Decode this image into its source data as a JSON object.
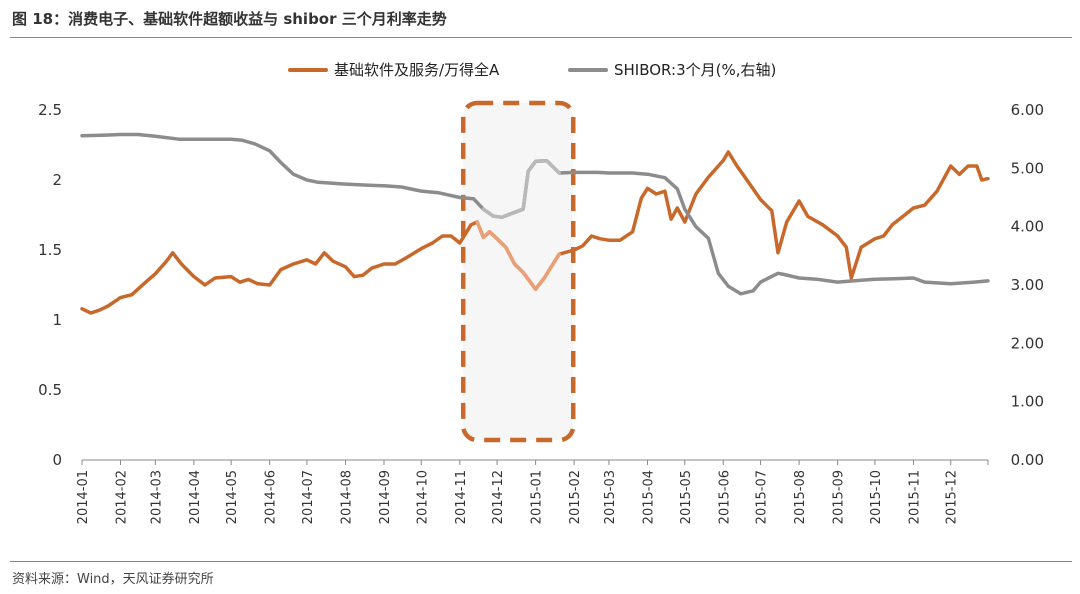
{
  "header": {
    "title": "图 18：消费电子、基础软件超额收益与 shibor 三个月利率走势"
  },
  "footer": {
    "source": "资料来源：Wind，天风证券研究所"
  },
  "colors": {
    "software": "#c8682a",
    "shibor": "#8c8c8c",
    "shibor_highlight": "#b9b9b9",
    "rule": "#c8773b",
    "highlight_box": "#c8682a"
  },
  "chart_data": {
    "type": "line",
    "title": "",
    "x_categories": [
      "2014-01",
      "2014-02",
      "2014-03",
      "2014-04",
      "2014-05",
      "2014-06",
      "2014-07",
      "2014-08",
      "2014-09",
      "2014-10",
      "2014-11",
      "2014-12",
      "2015-01",
      "2015-02",
      "2015-03",
      "2015-04",
      "2015-05",
      "2015-06",
      "2015-07",
      "2015-08",
      "2015-09",
      "2015-10",
      "2015-11",
      "2015-12"
    ],
    "y_left": {
      "ylim": [
        0,
        2.5
      ],
      "ticks": [
        "0",
        "0.5",
        "1",
        "1.5",
        "2",
        "2.5"
      ]
    },
    "y_right": {
      "ylim": [
        0,
        6
      ],
      "ticks": [
        "0.00",
        "1.00",
        "2.00",
        "3.00",
        "4.00",
        "5.00",
        "6.00"
      ]
    },
    "legend_position": "top-center",
    "grid": false,
    "highlight_range": [
      "2014-11-15",
      "2015-01-20"
    ],
    "series": [
      {
        "name": "基础软件及服务/万得全A",
        "axis": "left",
        "points": [
          [
            "2014-01-01",
            1.08
          ],
          [
            "2014-01-08",
            1.05
          ],
          [
            "2014-01-15",
            1.07
          ],
          [
            "2014-01-22",
            1.1
          ],
          [
            "2014-02-01",
            1.16
          ],
          [
            "2014-02-10",
            1.18
          ],
          [
            "2014-02-20",
            1.26
          ],
          [
            "2014-03-01",
            1.33
          ],
          [
            "2014-03-10",
            1.42
          ],
          [
            "2014-03-15",
            1.48
          ],
          [
            "2014-03-22",
            1.4
          ],
          [
            "2014-04-01",
            1.31
          ],
          [
            "2014-04-10",
            1.25
          ],
          [
            "2014-04-18",
            1.3
          ],
          [
            "2014-05-01",
            1.31
          ],
          [
            "2014-05-08",
            1.27
          ],
          [
            "2014-05-15",
            1.29
          ],
          [
            "2014-05-22",
            1.26
          ],
          [
            "2014-06-01",
            1.25
          ],
          [
            "2014-06-10",
            1.36
          ],
          [
            "2014-06-20",
            1.4
          ],
          [
            "2014-07-01",
            1.43
          ],
          [
            "2014-07-08",
            1.4
          ],
          [
            "2014-07-15",
            1.48
          ],
          [
            "2014-07-22",
            1.42
          ],
          [
            "2014-08-01",
            1.38
          ],
          [
            "2014-08-08",
            1.31
          ],
          [
            "2014-08-15",
            1.32
          ],
          [
            "2014-08-22",
            1.37
          ],
          [
            "2014-09-01",
            1.4
          ],
          [
            "2014-09-10",
            1.4
          ],
          [
            "2014-09-20",
            1.45
          ],
          [
            "2014-10-01",
            1.51
          ],
          [
            "2014-10-10",
            1.55
          ],
          [
            "2014-10-18",
            1.6
          ],
          [
            "2014-10-25",
            1.6
          ],
          [
            "2014-11-01",
            1.55
          ],
          [
            "2014-11-10",
            1.68
          ],
          [
            "2014-11-15",
            1.7
          ],
          [
            "2014-11-20",
            1.59
          ],
          [
            "2014-11-25",
            1.63
          ],
          [
            "2014-12-01",
            1.58
          ],
          [
            "2014-12-08",
            1.52
          ],
          [
            "2014-12-15",
            1.4
          ],
          [
            "2014-12-22",
            1.34
          ],
          [
            "2015-01-01",
            1.22
          ],
          [
            "2015-01-08",
            1.3
          ],
          [
            "2015-01-15",
            1.4
          ],
          [
            "2015-01-20",
            1.47
          ],
          [
            "2015-02-01",
            1.5
          ],
          [
            "2015-02-08",
            1.53
          ],
          [
            "2015-02-15",
            1.6
          ],
          [
            "2015-02-22",
            1.58
          ],
          [
            "2015-03-01",
            1.57
          ],
          [
            "2015-03-10",
            1.57
          ],
          [
            "2015-03-20",
            1.63
          ],
          [
            "2015-03-27",
            1.87
          ],
          [
            "2015-04-01",
            1.94
          ],
          [
            "2015-04-08",
            1.9
          ],
          [
            "2015-04-15",
            1.92
          ],
          [
            "2015-04-20",
            1.72
          ],
          [
            "2015-04-25",
            1.8
          ],
          [
            "2015-05-01",
            1.7
          ],
          [
            "2015-05-10",
            1.9
          ],
          [
            "2015-05-20",
            2.02
          ],
          [
            "2015-06-01",
            2.14
          ],
          [
            "2015-06-05",
            2.2
          ],
          [
            "2015-06-12",
            2.1
          ],
          [
            "2015-06-20",
            2.0
          ],
          [
            "2015-07-01",
            1.86
          ],
          [
            "2015-07-10",
            1.78
          ],
          [
            "2015-07-15",
            1.48
          ],
          [
            "2015-07-22",
            1.7
          ],
          [
            "2015-08-01",
            1.85
          ],
          [
            "2015-08-08",
            1.74
          ],
          [
            "2015-08-20",
            1.68
          ],
          [
            "2015-09-01",
            1.6
          ],
          [
            "2015-09-08",
            1.52
          ],
          [
            "2015-09-12",
            1.3
          ],
          [
            "2015-09-20",
            1.52
          ],
          [
            "2015-10-01",
            1.58
          ],
          [
            "2015-10-08",
            1.6
          ],
          [
            "2015-10-15",
            1.68
          ],
          [
            "2015-10-25",
            1.75
          ],
          [
            "2015-11-01",
            1.8
          ],
          [
            "2015-11-10",
            1.82
          ],
          [
            "2015-11-20",
            1.92
          ],
          [
            "2015-12-01",
            2.1
          ],
          [
            "2015-12-08",
            2.04
          ],
          [
            "2015-12-15",
            2.1
          ],
          [
            "2015-12-22",
            2.1
          ],
          [
            "2015-12-26",
            2.0
          ],
          [
            "2015-12-31",
            2.01
          ]
        ]
      },
      {
        "name": "SHIBOR:3个月(%,右轴)",
        "axis": "right",
        "points": [
          [
            "2014-01-01",
            5.56
          ],
          [
            "2014-01-20",
            5.57
          ],
          [
            "2014-02-01",
            5.58
          ],
          [
            "2014-02-15",
            5.58
          ],
          [
            "2014-03-01",
            5.55
          ],
          [
            "2014-03-20",
            5.5
          ],
          [
            "2014-04-01",
            5.5
          ],
          [
            "2014-04-20",
            5.5
          ],
          [
            "2014-05-01",
            5.5
          ],
          [
            "2014-05-10",
            5.48
          ],
          [
            "2014-05-20",
            5.42
          ],
          [
            "2014-06-01",
            5.3
          ],
          [
            "2014-06-10",
            5.1
          ],
          [
            "2014-06-20",
            4.9
          ],
          [
            "2014-07-01",
            4.8
          ],
          [
            "2014-07-10",
            4.76
          ],
          [
            "2014-08-01",
            4.73
          ],
          [
            "2014-08-20",
            4.71
          ],
          [
            "2014-09-01",
            4.7
          ],
          [
            "2014-09-15",
            4.68
          ],
          [
            "2014-10-01",
            4.61
          ],
          [
            "2014-10-15",
            4.58
          ],
          [
            "2014-11-01",
            4.5
          ],
          [
            "2014-11-12",
            4.48
          ],
          [
            "2014-11-20",
            4.3
          ],
          [
            "2014-11-28",
            4.18
          ],
          [
            "2014-12-05",
            4.16
          ],
          [
            "2014-12-12",
            4.22
          ],
          [
            "2014-12-22",
            4.3
          ],
          [
            "2014-12-26",
            4.95
          ],
          [
            "2015-01-01",
            5.12
          ],
          [
            "2015-01-10",
            5.13
          ],
          [
            "2015-01-20",
            4.92
          ],
          [
            "2015-02-01",
            4.93
          ],
          [
            "2015-02-20",
            4.93
          ],
          [
            "2015-03-01",
            4.92
          ],
          [
            "2015-03-20",
            4.92
          ],
          [
            "2015-04-01",
            4.9
          ],
          [
            "2015-04-15",
            4.84
          ],
          [
            "2015-04-25",
            4.65
          ],
          [
            "2015-05-01",
            4.3
          ],
          [
            "2015-05-10",
            4.0
          ],
          [
            "2015-05-20",
            3.8
          ],
          [
            "2015-05-28",
            3.2
          ],
          [
            "2015-06-05",
            2.98
          ],
          [
            "2015-06-15",
            2.85
          ],
          [
            "2015-06-25",
            2.9
          ],
          [
            "2015-07-01",
            3.05
          ],
          [
            "2015-07-15",
            3.2
          ],
          [
            "2015-07-20",
            3.18
          ],
          [
            "2015-08-01",
            3.12
          ],
          [
            "2015-08-15",
            3.1
          ],
          [
            "2015-09-01",
            3.05
          ],
          [
            "2015-09-20",
            3.08
          ],
          [
            "2015-10-01",
            3.1
          ],
          [
            "2015-10-20",
            3.11
          ],
          [
            "2015-11-01",
            3.12
          ],
          [
            "2015-11-10",
            3.05
          ],
          [
            "2015-12-01",
            3.02
          ],
          [
            "2015-12-20",
            3.05
          ],
          [
            "2015-12-31",
            3.07
          ]
        ]
      }
    ]
  }
}
